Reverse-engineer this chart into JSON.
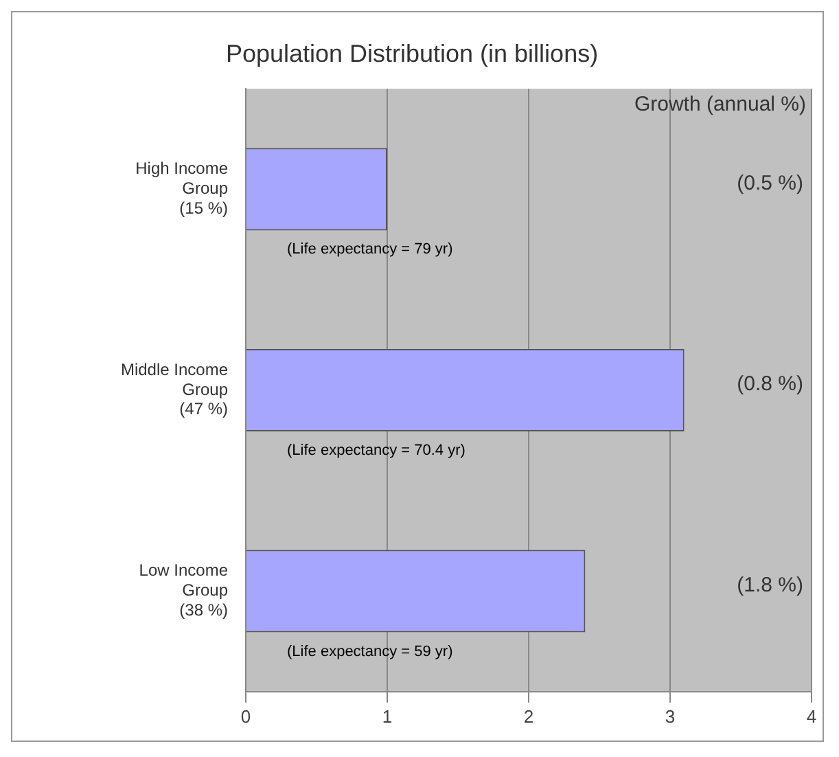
{
  "chart_data": {
    "type": "bar",
    "orientation": "horizontal",
    "title": "Population Distribution (in billions)",
    "categories": [
      "High Income\nGroup\n(15 %)",
      "Middle Income\nGroup\n(47 %)",
      "Low Income\nGroup\n(38 %)"
    ],
    "values": [
      1.0,
      3.1,
      2.4
    ],
    "color": "#a6a6ff",
    "xlim": [
      0,
      4
    ],
    "xticks": [
      0,
      1,
      2,
      3,
      4
    ],
    "grid": "x",
    "legend": false,
    "annotations": [
      "Growth (annual %)",
      "(0.5 %)",
      "(Life expectancy = 79 yr)",
      "(0.8 %)",
      "(Life expectancy = 70.4 yr)",
      "(1.8 %)",
      "(Life expectancy = 59 yr)"
    ]
  }
}
